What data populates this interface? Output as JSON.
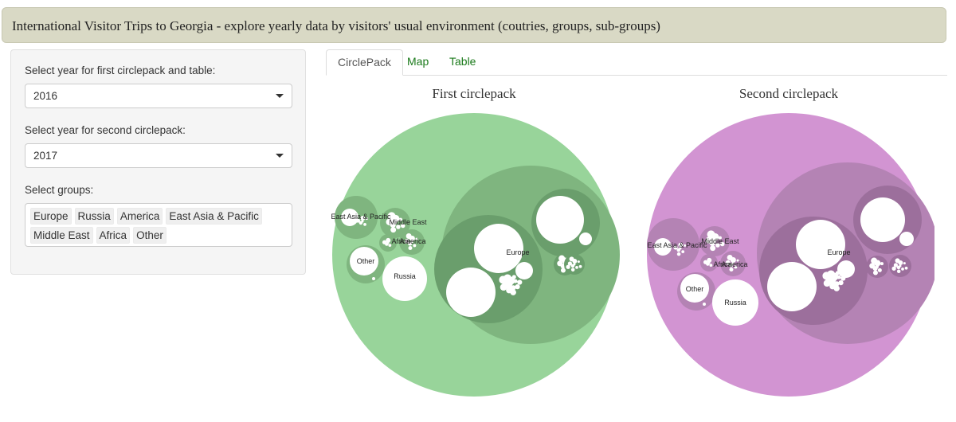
{
  "header": {
    "title": "International Visitor Trips to Georgia - explore yearly data by visitors' usual environment (coutries, groups, sub-groups)"
  },
  "sidebar": {
    "year1_label": "Select year for first circlepack and table:",
    "year1_value": "2016",
    "year2_label": "Select year for second circlepack:",
    "year2_value": "2017",
    "groups_label": "Select groups:",
    "groups": [
      "Europe",
      "Russia",
      "America",
      "East Asia & Pacific",
      "Middle East",
      "Africa",
      "Other"
    ]
  },
  "tabs": [
    "CirclePack",
    "Map",
    "Table"
  ],
  "packs": {
    "first": {
      "title": "First circlepack",
      "colors": {
        "outer": "#98d49a",
        "group": "#7fb57f",
        "sub": "#6a9e6c",
        "leaf": "#ffffff"
      },
      "labels": {
        "europe": "Europe",
        "russia": "Russia",
        "other": "Other",
        "eastasia": "East Asia & Pacific",
        "mideast": "Middle East",
        "africa": "Africa",
        "america": "America"
      }
    },
    "second": {
      "title": "Second circlepack",
      "colors": {
        "outer": "#d294d2",
        "group": "#b483b4",
        "sub": "#9c6f9c",
        "leaf": "#ffffff"
      },
      "labels": {
        "europe": "Europe",
        "russia": "Russia",
        "other": "Other",
        "eastasia": "East Asia & Pacific",
        "mideast": "Middle East",
        "africa": "Africa",
        "america": "America"
      }
    }
  }
}
